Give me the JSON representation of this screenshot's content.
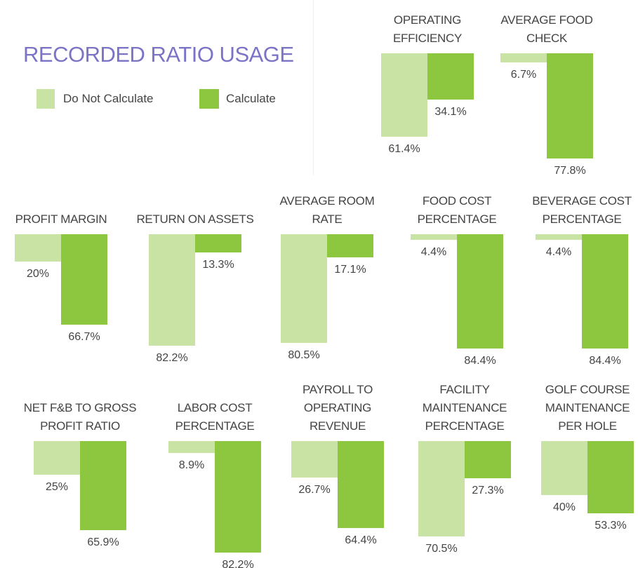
{
  "chart_data": {
    "type": "bar",
    "title": "RECORDED RATIO USAGE",
    "categories": [
      "OPERATING EFFICIENCY",
      "AVERAGE FOOD CHECK",
      "PROFIT MARGIN",
      "RETURN ON ASSETS",
      "AVERAGE ROOM RATE",
      "FOOD COST PERCENTAGE",
      "BEVERAGE COST PERCENTAGE",
      "NET F&B TO GROSS PROFIT RATIO",
      "LABOR COST PERCENTAGE",
      "PAYROLL TO OPERATING REVENUE",
      "FACILITY MAINTENANCE PERCENTAGE",
      "GOLF COURSE MAINTENANCE PER HOLE"
    ],
    "series": [
      {
        "name": "Do Not Calculate",
        "color": "#c9e3a5",
        "values": [
          61.4,
          6.7,
          20,
          82.2,
          80.5,
          4.4,
          4.4,
          25,
          8.9,
          26.7,
          70.5,
          40
        ],
        "value_labels": [
          "61.4%",
          "6.7%",
          "20%",
          "82.2%",
          "80.5%",
          "4.4%",
          "4.4%",
          "25%",
          "8.9%",
          "26.7%",
          "70.5%",
          "40%"
        ]
      },
      {
        "name": "Calculate",
        "color": "#8dc63f",
        "values": [
          34.1,
          77.8,
          66.7,
          13.3,
          17.1,
          84.4,
          84.4,
          65.9,
          82.2,
          64.4,
          27.3,
          53.3
        ],
        "value_labels": [
          "34.1%",
          "77.8%",
          "66.7%",
          "13.3%",
          "17.1%",
          "84.4%",
          "84.4%",
          "65.9%",
          "82.2%",
          "64.4%",
          "27.3%",
          "53.3%"
        ]
      }
    ]
  }
}
